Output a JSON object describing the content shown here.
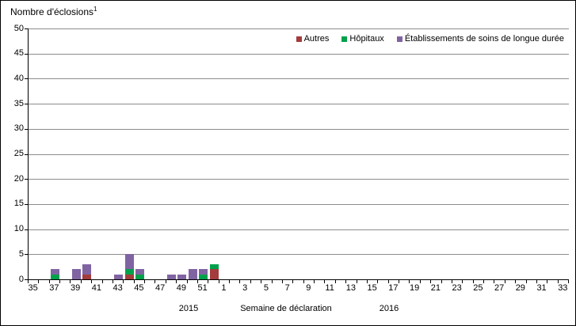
{
  "title": {
    "text": "Nombre d'éclosions",
    "superscript": "1"
  },
  "colors": {
    "autres": "#A33C3C",
    "hopitaux": "#00A14B",
    "etablissements": "#8064A2",
    "gridline": "#8C8C8C",
    "axis": "#000000",
    "background": "#FFFFFF"
  },
  "chart_data": {
    "type": "bar",
    "stacked": true,
    "title": "Nombre d'éclosions¹",
    "xlabel": "Semaine de déclaration",
    "ylabel": "Nombre d'éclosions",
    "ylim": [
      0,
      50
    ],
    "ytick_step": 5,
    "ytick_labels": [
      "0",
      "5",
      "10",
      "15",
      "20",
      "25",
      "30",
      "35",
      "40",
      "45",
      "50"
    ],
    "grid": "horizontal",
    "legend_position": "top-right-inside",
    "x_axis": {
      "title": "Semaine de déclaration",
      "groups": [
        {
          "year": "2015",
          "week_start": 35,
          "week_end": 52
        },
        {
          "year": "2016",
          "week_start": 1,
          "week_end": 33
        }
      ],
      "visible_tick_labels": [
        "35",
        "37",
        "39",
        "41",
        "43",
        "45",
        "47",
        "49",
        "51",
        "1",
        "3",
        "5",
        "7",
        "9",
        "11",
        "13",
        "15",
        "17",
        "19",
        "21",
        "23",
        "25",
        "27",
        "29",
        "31",
        "33"
      ]
    },
    "categories": [
      "35",
      "36",
      "37",
      "38",
      "39",
      "40",
      "41",
      "42",
      "43",
      "44",
      "45",
      "46",
      "47",
      "48",
      "49",
      "50",
      "51",
      "52",
      "1",
      "2",
      "3",
      "4",
      "5",
      "6",
      "7",
      "8",
      "9",
      "10",
      "11",
      "12",
      "13",
      "14",
      "15",
      "16",
      "17",
      "18",
      "19",
      "20",
      "21",
      "22",
      "23",
      "24",
      "25",
      "26",
      "27",
      "28",
      "29",
      "30",
      "31",
      "32",
      "33"
    ],
    "series": [
      {
        "name": "Autres",
        "color_key": "autres",
        "values": [
          0,
          0,
          0,
          0,
          0,
          1,
          0,
          0,
          0,
          1,
          0,
          0,
          0,
          0,
          0,
          0,
          0,
          2,
          0,
          0,
          0,
          0,
          0,
          0,
          0,
          0,
          0,
          0,
          0,
          0,
          0,
          0,
          0,
          0,
          0,
          0,
          0,
          0,
          0,
          0,
          0,
          0,
          0,
          0,
          0,
          0,
          0,
          0,
          0,
          0,
          0
        ]
      },
      {
        "name": "Hôpitaux",
        "color_key": "hopitaux",
        "values": [
          0,
          0,
          1,
          0,
          0,
          0,
          0,
          0,
          0,
          1,
          1,
          0,
          0,
          0,
          0,
          0,
          1,
          1,
          0,
          0,
          0,
          0,
          0,
          0,
          0,
          0,
          0,
          0,
          0,
          0,
          0,
          0,
          0,
          0,
          0,
          0,
          0,
          0,
          0,
          0,
          0,
          0,
          0,
          0,
          0,
          0,
          0,
          0,
          0,
          0,
          0
        ]
      },
      {
        "name": "Établissements de soins de longue durée",
        "color_key": "etablissements",
        "values": [
          0,
          0,
          1,
          0,
          2,
          2,
          0,
          0,
          1,
          3,
          1,
          0,
          0,
          1,
          1,
          2,
          1,
          0,
          0,
          0,
          0,
          0,
          0,
          0,
          0,
          0,
          0,
          0,
          0,
          0,
          0,
          0,
          0,
          0,
          0,
          0,
          0,
          0,
          0,
          0,
          0,
          0,
          0,
          0,
          0,
          0,
          0,
          0,
          0,
          0,
          0
        ]
      }
    ]
  }
}
